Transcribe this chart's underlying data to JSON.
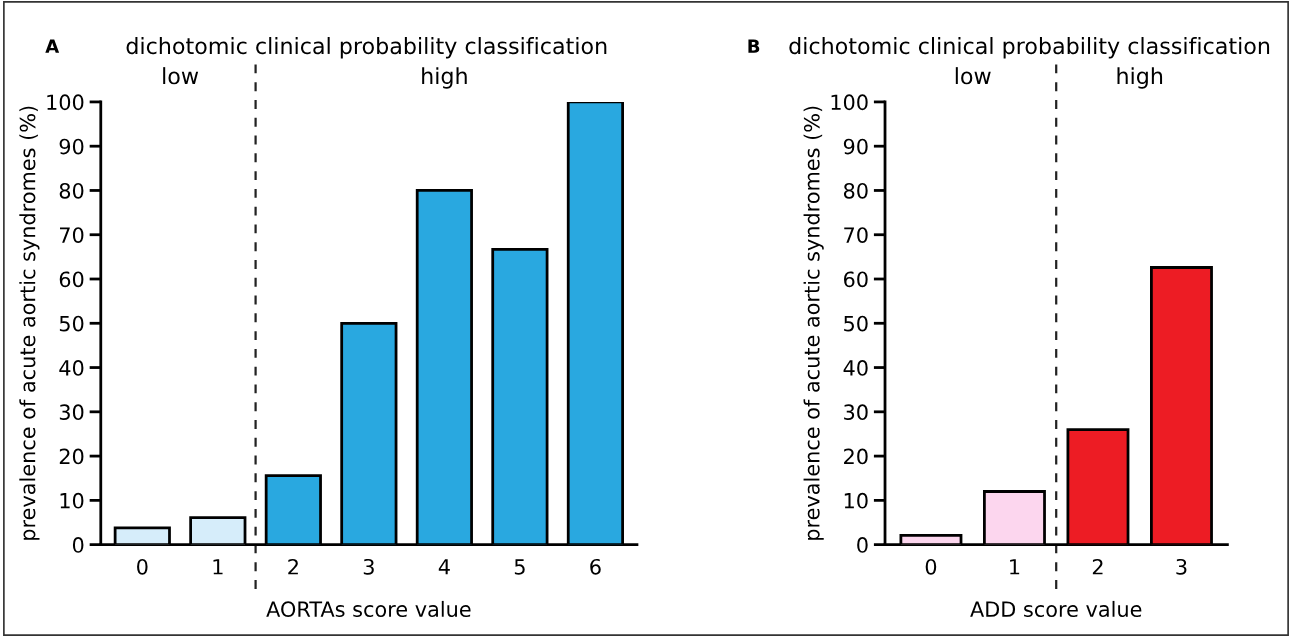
{
  "chart_data": [
    {
      "type": "bar",
      "title": "dichotomic clinical probability classification",
      "xlabel": "AORTAs score value",
      "ylabel": "prevalence of acute aortic syndromes (%)",
      "categories": [
        "0",
        "1",
        "2",
        "3",
        "4",
        "5",
        "6"
      ],
      "values": [
        3.8,
        6.1,
        15.6,
        50,
        80,
        66.7,
        100
      ],
      "colors": [
        "#d6edfa",
        "#d6edfa",
        "#29a8e0",
        "#29a8e0",
        "#29a8e0",
        "#29a8e0",
        "#29a8e0"
      ],
      "ylim": [
        0,
        100
      ],
      "yticks": [
        0,
        10,
        20,
        30,
        40,
        50,
        60,
        70,
        80,
        90,
        100
      ],
      "grid": false,
      "legend": false,
      "annotations": [
        "A",
        "low",
        "high"
      ]
    },
    {
      "type": "bar",
      "title": "dichotomic clinical probability classification",
      "xlabel": "ADD score value",
      "ylabel": "prevalence of acute aortic syndromes (%)",
      "categories": [
        "0",
        "1",
        "2",
        "3"
      ],
      "values": [
        2.1,
        12,
        26,
        62.6
      ],
      "colors": [
        "#fcd6ee",
        "#fcd6ee",
        "#ed1c24",
        "#ed1c24"
      ],
      "ylim": [
        0,
        100
      ],
      "yticks": [
        0,
        10,
        20,
        30,
        40,
        50,
        60,
        70,
        80,
        90,
        100
      ],
      "grid": false,
      "legend": false,
      "annotations": [
        "B",
        "low",
        "high"
      ]
    }
  ]
}
